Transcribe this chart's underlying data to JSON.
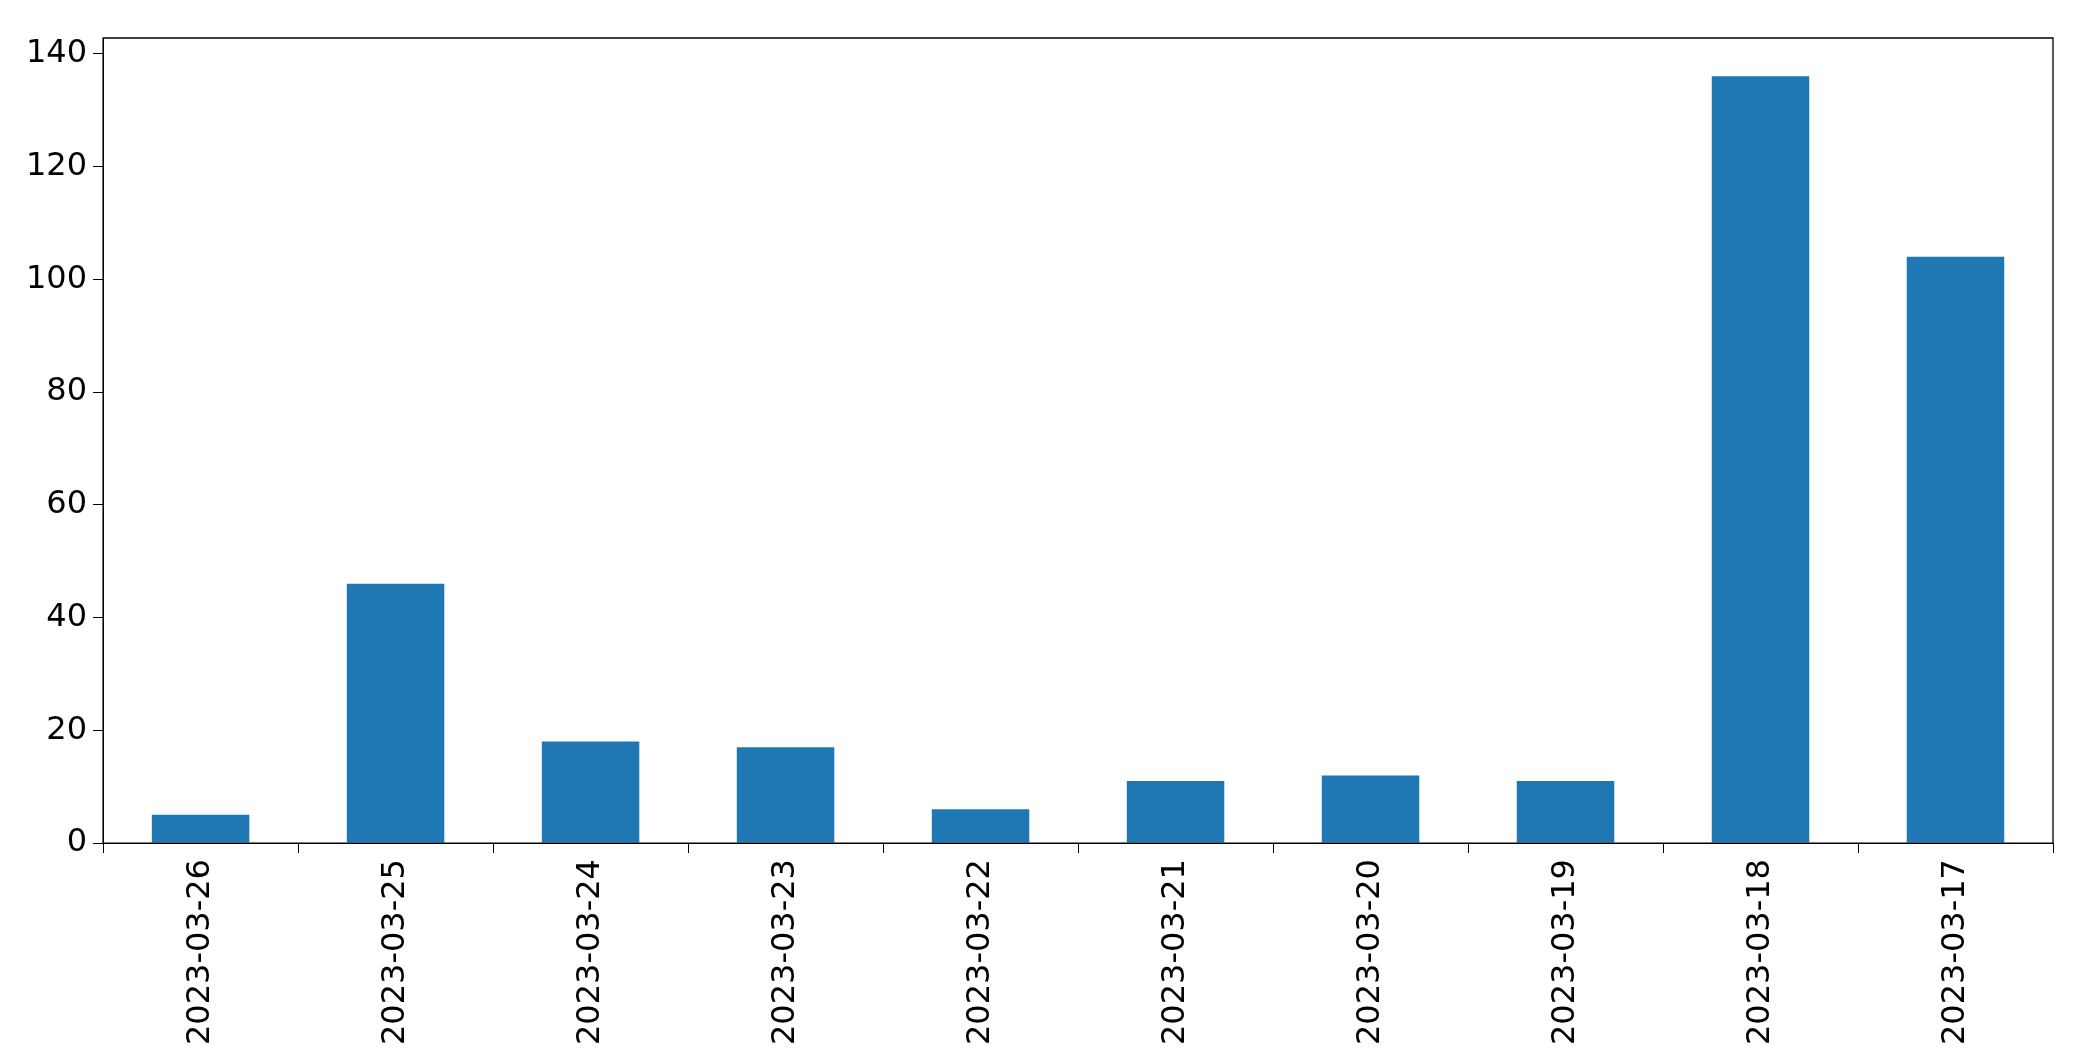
{
  "chart_data": {
    "type": "bar",
    "categories": [
      "2023-03-26",
      "2023-03-25",
      "2023-03-24",
      "2023-03-23",
      "2023-03-22",
      "2023-03-21",
      "2023-03-20",
      "2023-03-19",
      "2023-03-18",
      "2023-03-17"
    ],
    "values": [
      5,
      46,
      18,
      17,
      6,
      11,
      12,
      11,
      136,
      104
    ],
    "color": "#1f77b4",
    "ylim": [
      0,
      142.8
    ],
    "yticks": [
      0,
      20,
      40,
      60,
      80,
      100,
      120,
      140
    ],
    "grid": false,
    "legend": false
  }
}
